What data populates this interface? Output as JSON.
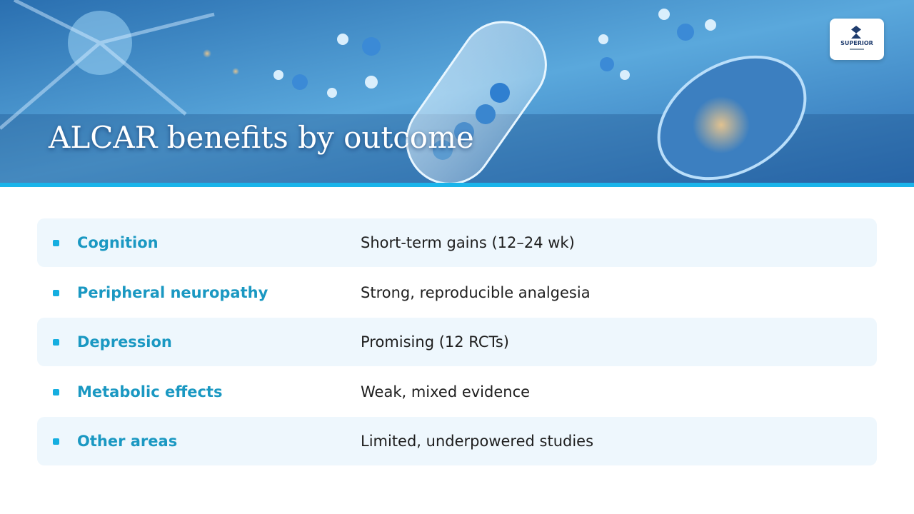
{
  "header": {
    "title": "ALCAR benefits by outcome",
    "logo": "SUPERIOR"
  },
  "table": {
    "rows": [
      [
        "Cognition",
        "Short-term gains (12–24 wk)"
      ],
      [
        "Peripheral neuropathy",
        "Strong, reproducible analgesia"
      ],
      [
        "Depression",
        "Promising (12 RCTs)"
      ],
      [
        "Metabolic effects",
        "Weak, mixed evidence"
      ],
      [
        "Other areas",
        "Limited, underpowered studies"
      ]
    ]
  }
}
